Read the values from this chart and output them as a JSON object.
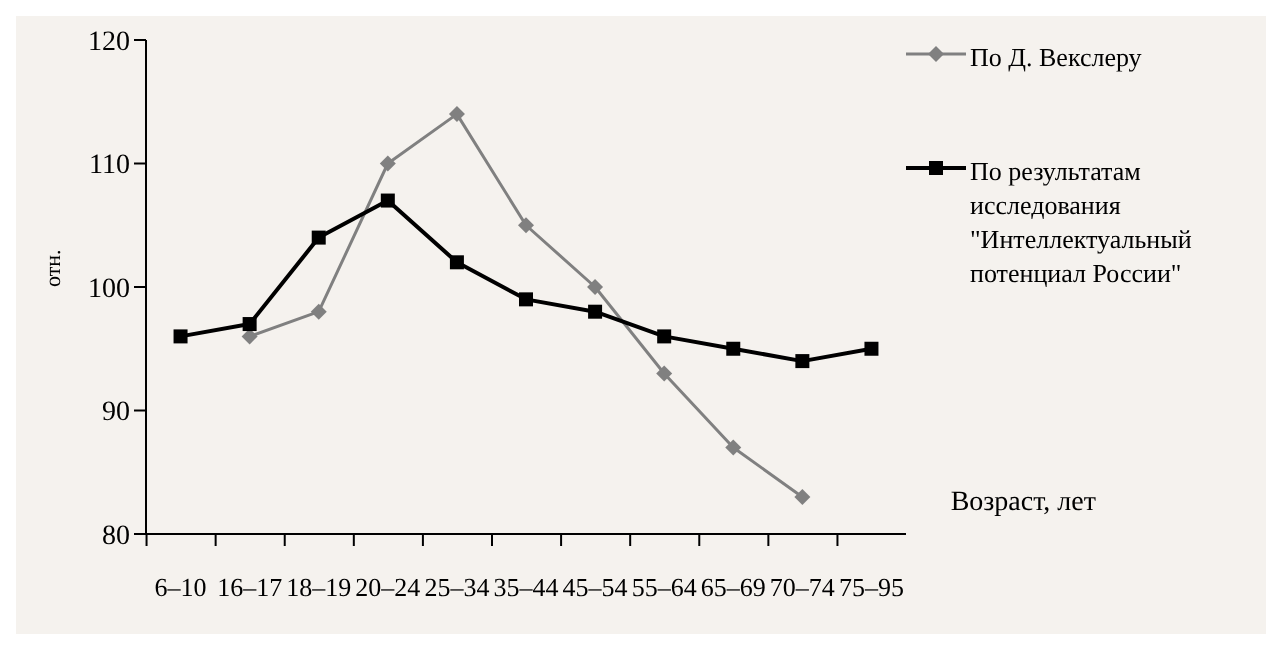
{
  "chart_data": {
    "type": "line",
    "xlabel": "Возраст, лет",
    "ylabel": "отн.",
    "categories": [
      "6–10",
      "16–17",
      "18–19",
      "20–24",
      "25–34",
      "35–44",
      "45–54",
      "55–64",
      "65–69",
      "70–74",
      "75–95"
    ],
    "series": [
      {
        "name": "По Д. Векслеру",
        "color": "#808080",
        "marker": "diamond",
        "values": [
          null,
          96,
          98,
          110,
          114,
          105,
          100,
          93,
          87,
          83,
          null
        ]
      },
      {
        "name": "По результатам исследования \"Интеллектуальный потенциал России\"",
        "color": "#000000",
        "marker": "square",
        "values": [
          96,
          97,
          104,
          107,
          102,
          99,
          98,
          96,
          95,
          94,
          95
        ]
      }
    ],
    "ylim": [
      80,
      120
    ],
    "yticks": [
      80,
      90,
      100,
      110,
      120
    ],
    "grid": false,
    "legend": "top right"
  }
}
